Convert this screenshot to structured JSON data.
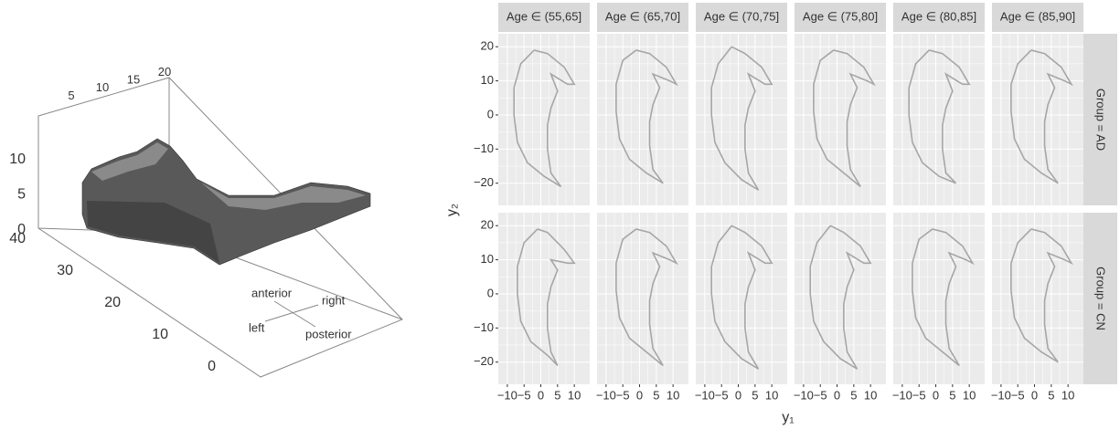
{
  "volume_plot": {
    "x_ticks": [
      5,
      10,
      15,
      20
    ],
    "z_ticks": [
      0,
      5,
      10
    ],
    "depth_ticks": [
      0,
      10,
      20,
      30,
      40
    ],
    "directions": {
      "anterior": "anterior",
      "right": "right",
      "left": "left",
      "posterior": "posterior"
    }
  },
  "chart_data": {
    "type": "line",
    "xlabel": "y₁",
    "ylabel": "y₂",
    "col_labels": [
      "Age ∈ (55,65]",
      "Age ∈ (65,70]",
      "Age ∈ (70,75]",
      "Age ∈ (75,80]",
      "Age ∈ (80,85]",
      "Age ∈ (85,90]"
    ],
    "row_labels": [
      "Group = AD",
      "Group = CN"
    ],
    "xlim": [
      -12.7,
      14.6
    ],
    "ylim": [
      -26.5,
      23.8
    ],
    "xticks": [
      {
        "value": -10,
        "label": "−10"
      },
      {
        "value": -5,
        "label": "−5"
      },
      0,
      5,
      10
    ],
    "yticks": [
      {
        "value": -20,
        "label": "−20"
      },
      {
        "value": -10,
        "label": "−10"
      },
      0,
      10,
      20
    ],
    "color": "#a6a6a6",
    "panels": [
      [
        {
          "x": [
            -2,
            -6,
            -8,
            -8,
            -7,
            -4,
            1,
            6,
            3,
            2,
            2,
            3,
            5,
            3,
            8,
            10,
            7,
            2,
            -2
          ],
          "y": [
            19,
            15,
            8,
            0,
            -8,
            -14,
            -18,
            -21,
            -17,
            -10,
            -3,
            2,
            7,
            12,
            9,
            9,
            14,
            18,
            19
          ]
        },
        {
          "x": [
            -1,
            -5,
            -7,
            -7,
            -6,
            -3,
            2,
            7,
            4,
            3,
            3,
            4,
            6,
            4,
            9,
            11,
            8,
            3,
            -1
          ],
          "y": [
            19,
            16,
            9,
            1,
            -7,
            -13,
            -17,
            -20,
            -16,
            -9,
            -2,
            3,
            8,
            12,
            10,
            9,
            14,
            18,
            19
          ]
        },
        {
          "x": [
            -2,
            -6,
            -8,
            -8,
            -7,
            -4,
            1,
            6,
            3,
            2,
            2,
            3,
            5,
            3,
            8,
            10,
            7,
            2,
            -2
          ],
          "y": [
            20,
            15,
            8,
            0,
            -8,
            -14,
            -19,
            -22,
            -17,
            -10,
            -3,
            2,
            7,
            12,
            9,
            9,
            14,
            18,
            20
          ]
        },
        {
          "x": [
            -1,
            -5,
            -7,
            -7,
            -6,
            -3,
            2,
            7,
            4,
            3,
            3,
            4,
            6,
            4,
            9,
            11,
            8,
            3,
            -1
          ],
          "y": [
            19,
            16,
            9,
            1,
            -7,
            -13,
            -17,
            -21,
            -16,
            -9,
            -2,
            3,
            8,
            12,
            10,
            9,
            14,
            18,
            19
          ]
        },
        {
          "x": [
            -2,
            -6,
            -8,
            -8,
            -7,
            -4,
            1,
            6,
            3,
            2,
            2,
            3,
            5,
            3,
            8,
            10,
            7,
            2,
            -2
          ],
          "y": [
            19,
            15,
            8,
            0,
            -8,
            -14,
            -18,
            -20,
            -17,
            -10,
            -3,
            2,
            7,
            12,
            9,
            9,
            14,
            18,
            19
          ]
        },
        {
          "x": [
            -1,
            -5,
            -7,
            -7,
            -6,
            -3,
            2,
            7,
            4,
            3,
            3,
            4,
            6,
            4,
            9,
            11,
            8,
            3,
            -1
          ],
          "y": [
            19,
            15,
            9,
            1,
            -7,
            -13,
            -17,
            -20,
            -16,
            -9,
            -2,
            3,
            8,
            12,
            10,
            9,
            14,
            18,
            19
          ]
        }
      ],
      [
        {
          "x": [
            -1,
            -5,
            -7,
            -7,
            -6,
            -3,
            2,
            5,
            3,
            2,
            2,
            3,
            5,
            3,
            8,
            10,
            7,
            2,
            -1
          ],
          "y": [
            19,
            15,
            8,
            0,
            -8,
            -14,
            -18,
            -21,
            -17,
            -10,
            -3,
            2,
            7,
            10,
            9,
            9,
            13,
            18,
            19
          ]
        },
        {
          "x": [
            -1,
            -5,
            -7,
            -7,
            -6,
            -3,
            2,
            7,
            4,
            3,
            3,
            4,
            6,
            4,
            9,
            11,
            8,
            3,
            -1
          ],
          "y": [
            19,
            16,
            9,
            1,
            -7,
            -13,
            -17,
            -21,
            -16,
            -9,
            -2,
            3,
            8,
            12,
            10,
            9,
            14,
            18,
            19
          ]
        },
        {
          "x": [
            -2,
            -6,
            -8,
            -8,
            -7,
            -4,
            1,
            6,
            3,
            2,
            2,
            3,
            5,
            3,
            8,
            10,
            7,
            2,
            -2
          ],
          "y": [
            20,
            15,
            8,
            0,
            -8,
            -14,
            -19,
            -22,
            -17,
            -10,
            -3,
            2,
            7,
            12,
            9,
            9,
            14,
            18,
            20
          ]
        },
        {
          "x": [
            -2,
            -6,
            -8,
            -8,
            -7,
            -4,
            1,
            6,
            3,
            2,
            2,
            3,
            5,
            3,
            8,
            10,
            7,
            2,
            -2
          ],
          "y": [
            20,
            15,
            8,
            0,
            -8,
            -14,
            -19,
            -22,
            -17,
            -10,
            -3,
            2,
            7,
            12,
            9,
            9,
            14,
            18,
            20
          ]
        },
        {
          "x": [
            -1,
            -5,
            -7,
            -7,
            -6,
            -3,
            2,
            7,
            4,
            3,
            3,
            4,
            6,
            4,
            9,
            11,
            8,
            3,
            -1
          ],
          "y": [
            19,
            16,
            9,
            1,
            -7,
            -13,
            -17,
            -21,
            -16,
            -9,
            -2,
            3,
            8,
            12,
            10,
            9,
            14,
            18,
            19
          ]
        },
        {
          "x": [
            -1,
            -5,
            -7,
            -7,
            -6,
            -3,
            2,
            7,
            4,
            3,
            3,
            4,
            6,
            4,
            9,
            11,
            8,
            3,
            -1
          ],
          "y": [
            19,
            15,
            9,
            1,
            -7,
            -13,
            -17,
            -20,
            -16,
            -9,
            -2,
            3,
            8,
            12,
            10,
            9,
            14,
            18,
            19
          ]
        }
      ]
    ]
  }
}
